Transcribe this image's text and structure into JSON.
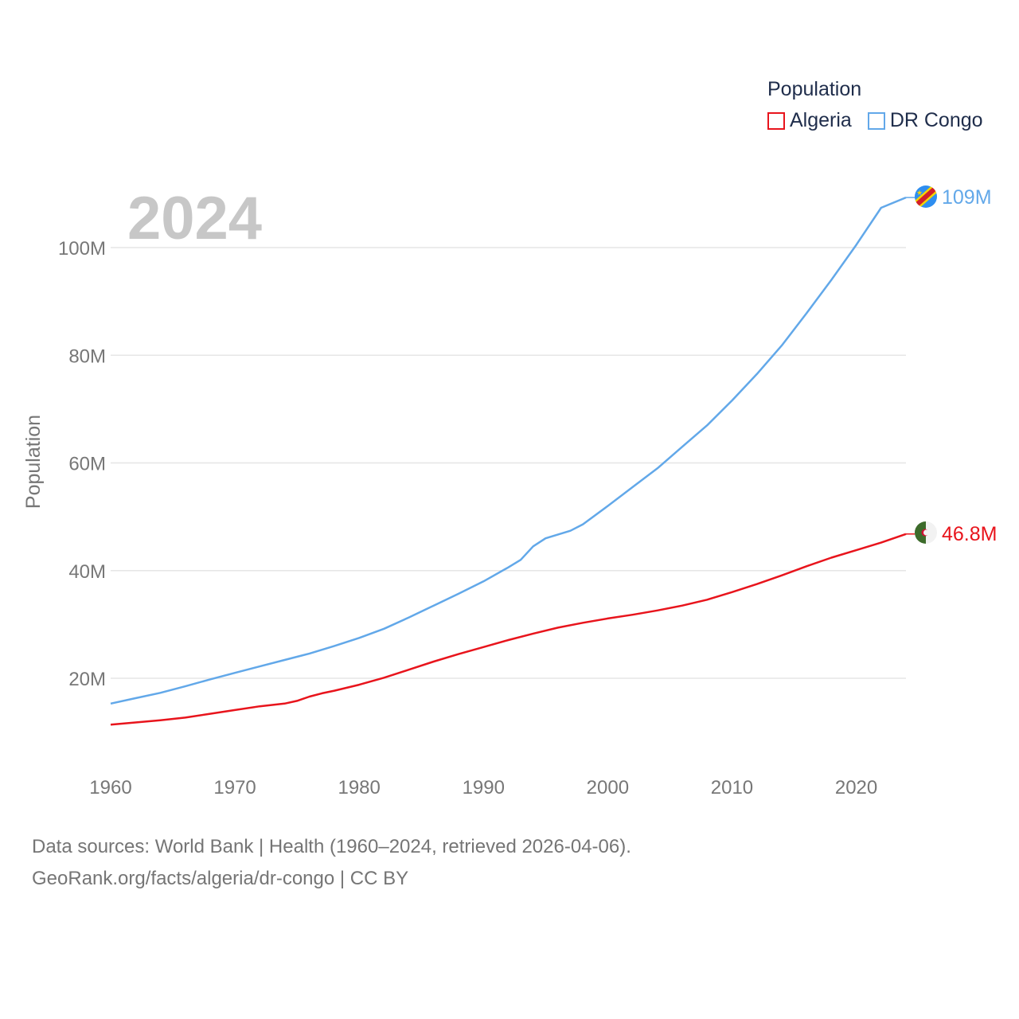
{
  "legend": {
    "title": "Population",
    "items": [
      {
        "label": "Algeria",
        "color": "#e8141c"
      },
      {
        "label": "DR Congo",
        "color": "#62a8e9"
      }
    ]
  },
  "footer": {
    "line1": "Data sources: World Bank | Health (1960–2024, retrieved 2026-04-06).",
    "line2": "GeoRank.org/facts/algeria/dr-congo | CC BY"
  },
  "chart_data": {
    "type": "line",
    "year_label": "2024",
    "ylabel": "Population",
    "xlabel": "",
    "xlim": [
      1960,
      2024
    ],
    "ylim": [
      5000000,
      110000000
    ],
    "x_ticks": [
      1960,
      1970,
      1980,
      1990,
      2000,
      2010,
      2020
    ],
    "x_tick_labels": [
      "1960",
      "1970",
      "1980",
      "1990",
      "2000",
      "2010",
      "2020"
    ],
    "y_ticks": [
      20000000,
      40000000,
      60000000,
      80000000,
      100000000
    ],
    "y_tick_labels": [
      "20M",
      "40M",
      "60M",
      "80M",
      "100M"
    ],
    "grid": true,
    "legend_position": "top-right",
    "series": [
      {
        "name": "Algeria",
        "color": "#e8141c",
        "end_label": "46.8M",
        "x": [
          1960,
          1962,
          1964,
          1966,
          1968,
          1970,
          1972,
          1974,
          1975,
          1976,
          1977,
          1978,
          1980,
          1982,
          1984,
          1986,
          1988,
          1990,
          1992,
          1994,
          1996,
          1998,
          2000,
          2002,
          2004,
          2006,
          2008,
          2010,
          2012,
          2014,
          2016,
          2018,
          2020,
          2022,
          2024
        ],
        "y": [
          11400000,
          11800000,
          12200000,
          12700000,
          13400000,
          14100000,
          14800000,
          15300000,
          15800000,
          16600000,
          17200000,
          17700000,
          18800000,
          20100000,
          21600000,
          23100000,
          24500000,
          25800000,
          27100000,
          28300000,
          29400000,
          30300000,
          31100000,
          31800000,
          32600000,
          33500000,
          34600000,
          36000000,
          37500000,
          39100000,
          40800000,
          42400000,
          43800000,
          45200000,
          46800000
        ]
      },
      {
        "name": "DR Congo",
        "color": "#62a8e9",
        "end_label": "109M",
        "x": [
          1960,
          1962,
          1964,
          1966,
          1968,
          1970,
          1972,
          1974,
          1976,
          1978,
          1980,
          1982,
          1984,
          1986,
          1988,
          1990,
          1992,
          1993,
          1994,
          1995,
          1996,
          1997,
          1998,
          2000,
          2002,
          2004,
          2006,
          2008,
          2010,
          2012,
          2014,
          2016,
          2018,
          2020,
          2022,
          2024
        ],
        "y": [
          15300000,
          16300000,
          17300000,
          18500000,
          19800000,
          21000000,
          22200000,
          23400000,
          24600000,
          26000000,
          27500000,
          29200000,
          31300000,
          33500000,
          35700000,
          38000000,
          40600000,
          42000000,
          44500000,
          46000000,
          46700000,
          47400000,
          48600000,
          52000000,
          55500000,
          59000000,
          63000000,
          67000000,
          71600000,
          76500000,
          81800000,
          87800000,
          94000000,
          100500000,
          107400000,
          109300000
        ]
      }
    ]
  }
}
